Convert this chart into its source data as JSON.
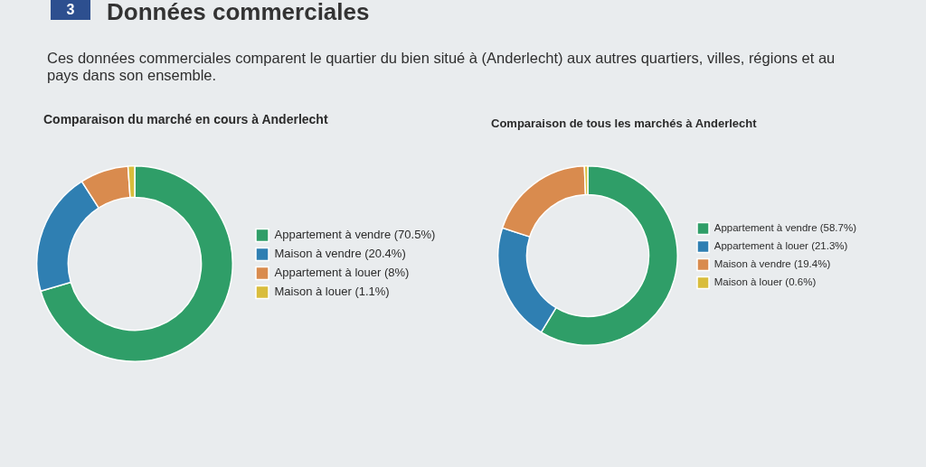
{
  "chart_data": [
    {
      "type": "donut",
      "title": "Comparaison du marché en cours à Anderlecht",
      "annotations": [
        "3",
        "Données commerciales",
        "Ces données commerciales comparent le quartier du bien situé à (Anderlecht) aux autres quartiers, villes, régions et au pays dans son ensemble."
      ],
      "categories": [
        "Appartement à vendre (70.5%)",
        "Maison à vendre (20.4%)",
        "Appartement à louer (8%)",
        "Maison à louer (1.1%)"
      ],
      "values": [
        70.5,
        20.4,
        8,
        1.1
      ],
      "colors": [
        "#2f9e68",
        "#2f7fb2",
        "#d98b4e",
        "#d9bd3c"
      ],
      "legend": "right"
    },
    {
      "type": "donut",
      "title": "Comparaison de tous les marchés à Anderlecht",
      "categories": [
        "Appartement à vendre (58.7%)",
        "Appartement à louer (21.3%)",
        "Maison à vendre (19.4%)",
        "Maison à louer (0.6%)"
      ],
      "values": [
        58.7,
        21.3,
        19.4,
        0.6
      ],
      "colors": [
        "#2f9e68",
        "#2f7fb2",
        "#d98b4e",
        "#d9bd3c"
      ],
      "legend": "right"
    }
  ]
}
